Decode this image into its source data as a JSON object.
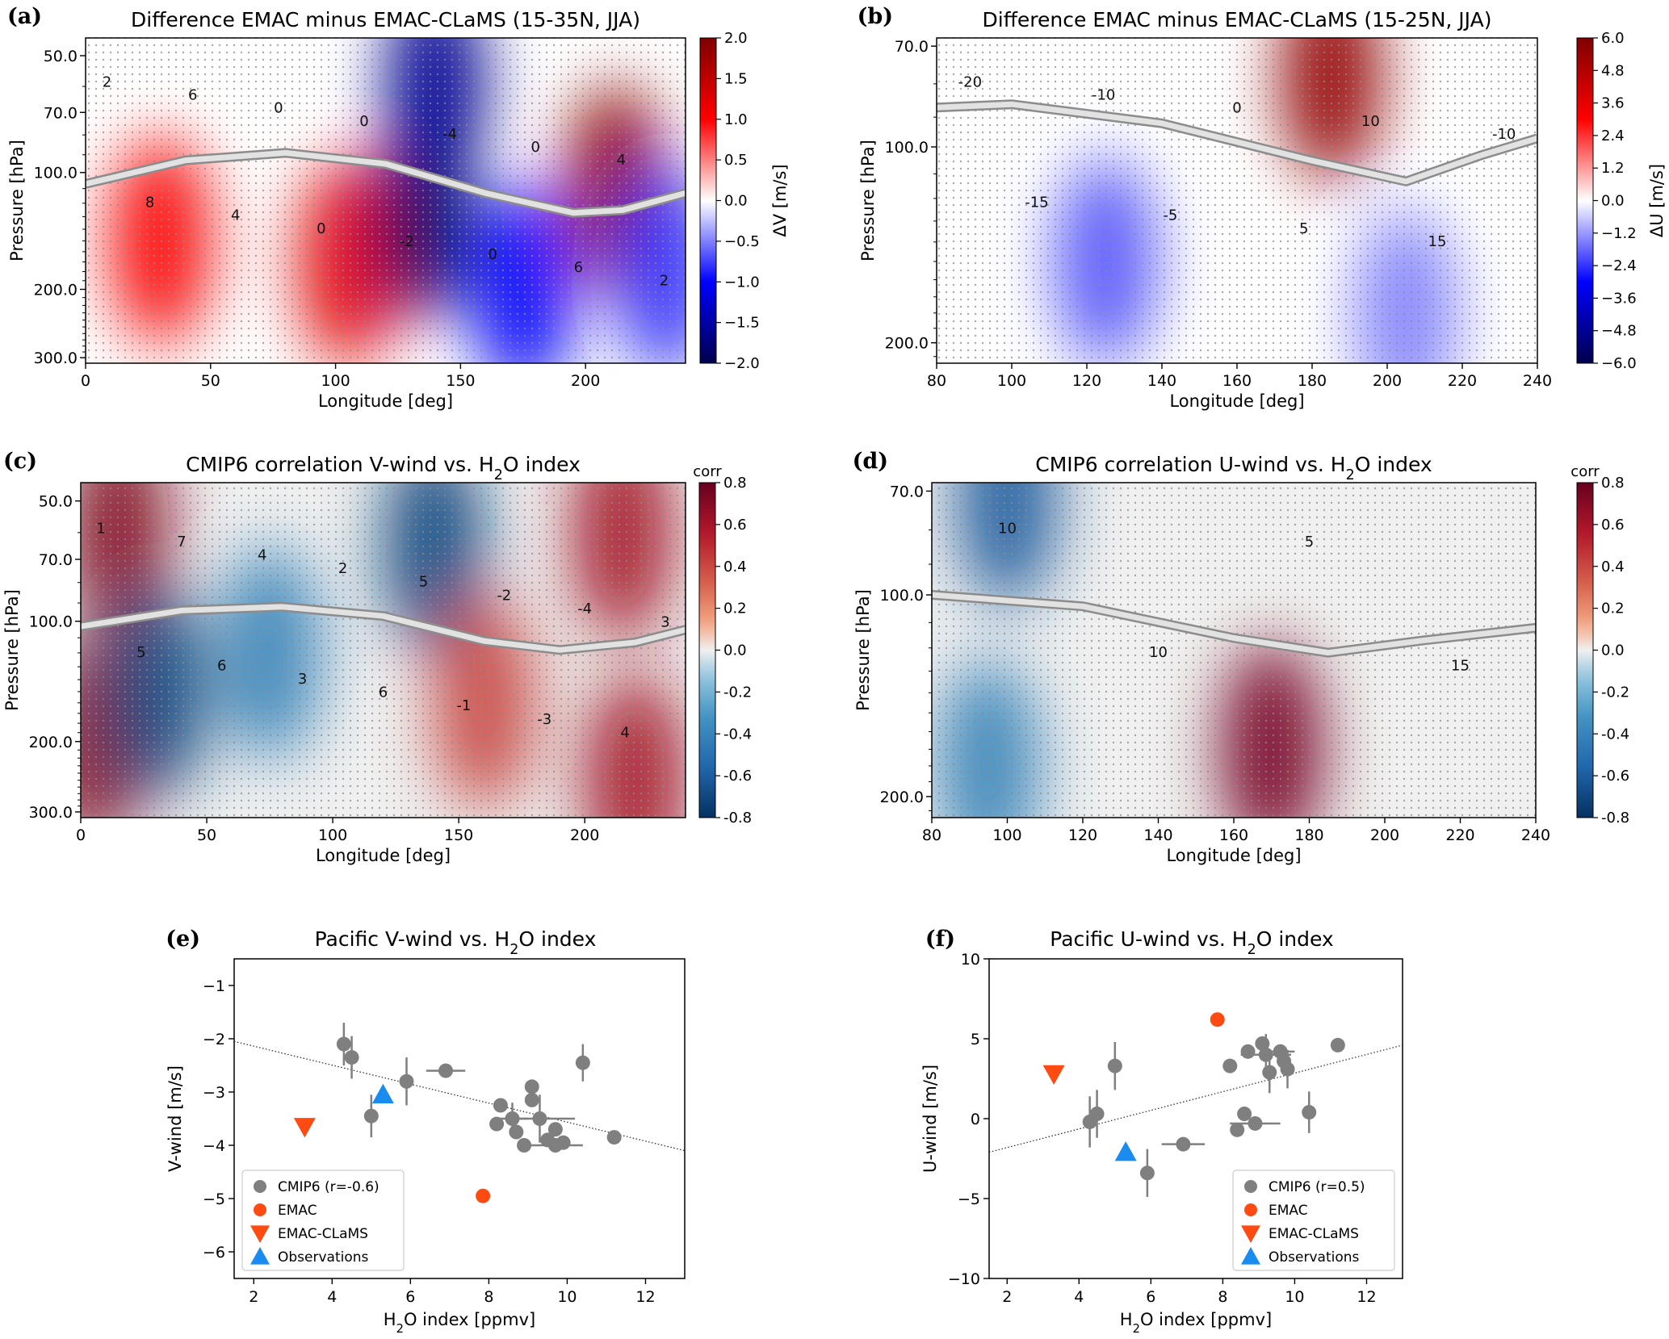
{
  "chart_data": [
    {
      "id": "a",
      "type": "heatmap",
      "panel_label": "(a)",
      "title": "Difference EMAC minus EMAC-CLaMS (15-35N, JJA)",
      "xlabel": "Longitude [deg]",
      "ylabel": "Pressure [hPa]",
      "xlim": [
        0,
        240
      ],
      "ylim": [
        310,
        45
      ],
      "y_scale": "log",
      "x_ticks": [
        "0",
        "50",
        "100",
        "150",
        "200"
      ],
      "x_tick_values": [
        0,
        50,
        100,
        150,
        200
      ],
      "y_ticks": [
        "50.0",
        "70.0",
        "100.0",
        "200.0",
        "300.0"
      ],
      "y_tick_values": [
        50,
        70,
        100,
        200,
        300
      ],
      "colorbar": {
        "label": "ΔV [m/s]",
        "range": [
          -2,
          2
        ],
        "colormap": "seismic",
        "ticks": [
          "2.0",
          "1.5",
          "1.0",
          "0.5",
          "0.0",
          "−0.5",
          "−1.0",
          "−1.5",
          "−2.0"
        ]
      },
      "contour_labels": [
        "2",
        "8",
        "6",
        "4",
        "0",
        "0",
        "0",
        "-2",
        "-4",
        "0",
        "0",
        "6",
        "4",
        "2"
      ],
      "anomaly_centers": [
        {
          "lon": 30,
          "p": 150,
          "value": 1.0
        },
        {
          "lon": 105,
          "p": 170,
          "value": 1.2
        },
        {
          "lon": 135,
          "p": 130,
          "value": -1.9
        },
        {
          "lon": 140,
          "p": 60,
          "value": -1.6
        },
        {
          "lon": 175,
          "p": 200,
          "value": -1.0
        },
        {
          "lon": 212,
          "p": 110,
          "value": 1.9
        },
        {
          "lon": 232,
          "p": 180,
          "value": -0.8
        }
      ],
      "tropopause": [
        [
          0,
          107
        ],
        [
          40,
          93
        ],
        [
          80,
          89
        ],
        [
          120,
          95
        ],
        [
          160,
          113
        ],
        [
          195,
          127
        ],
        [
          215,
          125
        ],
        [
          240,
          113
        ]
      ]
    },
    {
      "id": "b",
      "type": "heatmap",
      "panel_label": "(b)",
      "title": "Difference EMAC minus EMAC-CLaMS (15-25N, JJA)",
      "xlabel": "Longitude [deg]",
      "ylabel": "Pressure [hPa]",
      "xlim": [
        80,
        240
      ],
      "ylim": [
        215,
        68
      ],
      "y_scale": "log",
      "x_ticks": [
        "80",
        "100",
        "120",
        "140",
        "160",
        "180",
        "200",
        "220",
        "240"
      ],
      "x_tick_values": [
        80,
        100,
        120,
        140,
        160,
        180,
        200,
        220,
        240
      ],
      "y_ticks": [
        "70.0",
        "100.0",
        "200.0"
      ],
      "y_tick_values": [
        70,
        100,
        200
      ],
      "colorbar": {
        "label": "ΔU [m/s]",
        "range": [
          -6,
          6
        ],
        "colormap": "seismic",
        "ticks": [
          "6.0",
          "4.8",
          "3.6",
          "2.4",
          "1.2",
          "0.0",
          "−1.2",
          "−2.4",
          "−3.6",
          "−4.8",
          "−6.0"
        ]
      },
      "contour_labels": [
        "-20",
        "-15",
        "-10",
        "-5",
        "0",
        "5",
        "10",
        "15",
        "-10"
      ],
      "anomaly_centers": [
        {
          "lon": 185,
          "p": 78,
          "value": 5.5
        },
        {
          "lon": 125,
          "p": 150,
          "value": -2.0
        },
        {
          "lon": 205,
          "p": 180,
          "value": -1.5
        }
      ],
      "tropopause": [
        [
          80,
          87
        ],
        [
          100,
          86
        ],
        [
          140,
          92
        ],
        [
          180,
          105
        ],
        [
          205,
          113
        ],
        [
          225,
          103
        ],
        [
          240,
          97
        ]
      ]
    },
    {
      "id": "c",
      "type": "heatmap",
      "panel_label": "(c)",
      "title": "CMIP6 correlation V-wind vs. H",
      "title_sub": "2",
      "title_end": "O index",
      "xlabel": "Longitude [deg]",
      "ylabel": "Pressure [hPa]",
      "xlim": [
        0,
        240
      ],
      "ylim": [
        310,
        45
      ],
      "y_scale": "log",
      "x_ticks": [
        "0",
        "50",
        "100",
        "150",
        "200"
      ],
      "x_tick_values": [
        0,
        50,
        100,
        150,
        200
      ],
      "y_ticks": [
        "50.0",
        "70.0",
        "100.0",
        "200.0",
        "300.0"
      ],
      "y_tick_values": [
        50,
        70,
        100,
        200,
        300
      ],
      "colorbar": {
        "label": "corr",
        "range": [
          -0.8,
          0.8
        ],
        "colormap": "RdBu_r",
        "ticks": [
          "0.8",
          "0.6",
          "0.4",
          "0.2",
          "0.0",
          "-0.2",
          "-0.4",
          "-0.6",
          "-0.8"
        ]
      },
      "contour_labels": [
        "1",
        "5",
        "7",
        "6",
        "4",
        "3",
        "2",
        "6",
        "5",
        "-1",
        "-2",
        "-3",
        "-4",
        "4",
        "3"
      ],
      "anomaly_centers": [
        {
          "lon": 15,
          "p": 60,
          "value": 0.7
        },
        {
          "lon": 5,
          "p": 200,
          "value": 0.7
        },
        {
          "lon": 30,
          "p": 150,
          "value": -0.7
        },
        {
          "lon": 75,
          "p": 120,
          "value": -0.4
        },
        {
          "lon": 140,
          "p": 65,
          "value": -0.7
        },
        {
          "lon": 160,
          "p": 160,
          "value": 0.4
        },
        {
          "lon": 215,
          "p": 60,
          "value": 0.6
        },
        {
          "lon": 220,
          "p": 250,
          "value": 0.6
        }
      ],
      "tropopause": [
        [
          0,
          103
        ],
        [
          40,
          94
        ],
        [
          80,
          92
        ],
        [
          120,
          97
        ],
        [
          160,
          112
        ],
        [
          190,
          118
        ],
        [
          220,
          113
        ],
        [
          240,
          105
        ]
      ]
    },
    {
      "id": "d",
      "type": "heatmap",
      "panel_label": "(d)",
      "title": "CMIP6 correlation U-wind vs. H",
      "title_sub": "2",
      "title_end": "O index",
      "xlabel": "Longitude [deg]",
      "ylabel": "Pressure [hPa]",
      "xlim": [
        80,
        240
      ],
      "ylim": [
        215,
        68
      ],
      "y_scale": "log",
      "x_ticks": [
        "80",
        "100",
        "120",
        "140",
        "160",
        "180",
        "200",
        "220",
        "240"
      ],
      "x_tick_values": [
        80,
        100,
        120,
        140,
        160,
        180,
        200,
        220,
        240
      ],
      "y_ticks": [
        "70.0",
        "100.0",
        "200.0"
      ],
      "y_tick_values": [
        70,
        100,
        200
      ],
      "colorbar": {
        "label": "corr",
        "range": [
          -0.8,
          0.8
        ],
        "colormap": "RdBu_r",
        "ticks": [
          "0.8",
          "0.6",
          "0.4",
          "0.2",
          "0.0",
          "-0.2",
          "-0.4",
          "-0.6",
          "-0.8"
        ]
      },
      "contour_labels": [
        "10",
        "10",
        "5",
        "15"
      ],
      "anomaly_centers": [
        {
          "lon": 170,
          "p": 170,
          "value": 0.75
        },
        {
          "lon": 100,
          "p": 72,
          "value": -0.6
        },
        {
          "lon": 95,
          "p": 180,
          "value": -0.4
        }
      ],
      "tropopause": [
        [
          80,
          100
        ],
        [
          120,
          104
        ],
        [
          160,
          116
        ],
        [
          185,
          122
        ],
        [
          210,
          117
        ],
        [
          240,
          112
        ]
      ]
    },
    {
      "id": "e",
      "type": "scatter",
      "panel_label": "(e)",
      "title": "Pacific V-wind vs. H",
      "title_sub": "2",
      "title_end": "O index",
      "xlabel": "H",
      "xlabel_sub": "2",
      "xlabel_end": "O index [ppmv]",
      "ylabel": "V-wind [m/s]",
      "xlim": [
        1.5,
        13
      ],
      "ylim": [
        -6.5,
        -0.5
      ],
      "x_ticks": [
        "2",
        "4",
        "6",
        "8",
        "10",
        "12"
      ],
      "x_tick_values": [
        2,
        4,
        6,
        8,
        10,
        12
      ],
      "y_ticks": [
        "−1",
        "−2",
        "−3",
        "−4",
        "−5",
        "−6"
      ],
      "y_tick_values": [
        -1,
        -2,
        -3,
        -4,
        -5,
        -6
      ],
      "legend_position": "lower-left",
      "regression": {
        "x": [
          1.5,
          13
        ],
        "y": [
          -2.05,
          -4.1
        ]
      },
      "series": [
        {
          "name": "CMIP6 (r=-0.6)",
          "marker": "circle",
          "color": "#7f7f7f",
          "points": [
            {
              "x": 4.3,
              "y": -2.1,
              "xerr": 0.05,
              "yerr": 0.4
            },
            {
              "x": 4.5,
              "y": -2.35,
              "xerr": 0.05,
              "yerr": 0.4
            },
            {
              "x": 5.0,
              "y": -3.45,
              "xerr": 0.05,
              "yerr": 0.4
            },
            {
              "x": 5.9,
              "y": -2.8,
              "xerr": 0.05,
              "yerr": 0.45
            },
            {
              "x": 6.9,
              "y": -2.6,
              "xerr": 0.5,
              "yerr": 0.05
            },
            {
              "x": 8.3,
              "y": -3.25,
              "xerr": 0.05,
              "yerr": 0.05
            },
            {
              "x": 8.2,
              "y": -3.6,
              "xerr": 0.05,
              "yerr": 0.05
            },
            {
              "x": 8.6,
              "y": -3.5,
              "xerr": 0.4,
              "yerr": 0.3
            },
            {
              "x": 8.7,
              "y": -3.75,
              "xerr": 0.05,
              "yerr": 0.05
            },
            {
              "x": 8.9,
              "y": -4.0,
              "xerr": 0.05,
              "yerr": 0.05
            },
            {
              "x": 9.1,
              "y": -2.9,
              "xerr": 0.05,
              "yerr": 0.05
            },
            {
              "x": 9.1,
              "y": -3.15,
              "xerr": 0.05,
              "yerr": 0.05
            },
            {
              "x": 9.3,
              "y": -3.5,
              "xerr": 0.9,
              "yerr": 0.45
            },
            {
              "x": 9.5,
              "y": -3.9,
              "xerr": 0.05,
              "yerr": 0.05
            },
            {
              "x": 9.7,
              "y": -3.7,
              "xerr": 0.05,
              "yerr": 0.05
            },
            {
              "x": 9.7,
              "y": -4.0,
              "xerr": 0.7,
              "yerr": 0.05
            },
            {
              "x": 9.9,
              "y": -3.95,
              "xerr": 0.05,
              "yerr": 0.05
            },
            {
              "x": 10.4,
              "y": -2.45,
              "xerr": 0.05,
              "yerr": 0.35
            },
            {
              "x": 11.2,
              "y": -3.85,
              "xerr": 0.05,
              "yerr": 0.05
            }
          ]
        },
        {
          "name": "EMAC",
          "marker": "circle",
          "color": "#ff4a12",
          "points": [
            {
              "x": 7.85,
              "y": -4.95
            }
          ]
        },
        {
          "name": "EMAC-CLaMS",
          "marker": "triangle-down",
          "color": "#ff4a12",
          "points": [
            {
              "x": 3.3,
              "y": -3.65
            }
          ]
        },
        {
          "name": "Observations",
          "marker": "triangle-up",
          "color": "#1a8cf0",
          "points": [
            {
              "x": 5.3,
              "y": -3.05
            }
          ]
        }
      ]
    },
    {
      "id": "f",
      "type": "scatter",
      "panel_label": "(f)",
      "title": "Pacific U-wind vs. H",
      "title_sub": "2",
      "title_end": "O index",
      "xlabel": "H",
      "xlabel_sub": "2",
      "xlabel_end": "O index [ppmv]",
      "ylabel": "U-wind [m/s]",
      "xlim": [
        1.5,
        13
      ],
      "ylim": [
        -10,
        10
      ],
      "x_ticks": [
        "2",
        "4",
        "6",
        "8",
        "10",
        "12"
      ],
      "x_tick_values": [
        2,
        4,
        6,
        8,
        10,
        12
      ],
      "y_ticks": [
        "10",
        "5",
        "0",
        "−5",
        "−10"
      ],
      "y_tick_values": [
        10,
        5,
        0,
        -5,
        -10
      ],
      "legend_position": "lower-right",
      "regression": {
        "x": [
          1.5,
          13
        ],
        "y": [
          -2.1,
          4.6
        ]
      },
      "series": [
        {
          "name": "CMIP6 (r=0.5)",
          "marker": "circle",
          "color": "#7f7f7f",
          "points": [
            {
              "x": 4.3,
              "y": -0.2,
              "xerr": 0.05,
              "yerr": 1.6
            },
            {
              "x": 4.5,
              "y": 0.3,
              "xerr": 0.05,
              "yerr": 1.5
            },
            {
              "x": 5.0,
              "y": 3.3,
              "xerr": 0.05,
              "yerr": 1.5
            },
            {
              "x": 5.9,
              "y": -3.4,
              "xerr": 0.05,
              "yerr": 1.5
            },
            {
              "x": 6.9,
              "y": -1.6,
              "xerr": 0.6,
              "yerr": 0.05
            },
            {
              "x": 8.2,
              "y": 3.3,
              "xerr": 0.05,
              "yerr": 0.05
            },
            {
              "x": 8.4,
              "y": -0.7,
              "xerr": 0.05,
              "yerr": 0.05
            },
            {
              "x": 8.6,
              "y": 0.3,
              "xerr": 0.05,
              "yerr": 0.05
            },
            {
              "x": 8.7,
              "y": 4.2,
              "xerr": 0.05,
              "yerr": 0.05
            },
            {
              "x": 8.9,
              "y": -0.3,
              "xerr": 0.7,
              "yerr": 0.05
            },
            {
              "x": 9.1,
              "y": 4.7,
              "xerr": 0.05,
              "yerr": 0.05
            },
            {
              "x": 9.2,
              "y": 4.0,
              "xerr": 0.7,
              "yerr": 1.3
            },
            {
              "x": 9.3,
              "y": 2.9,
              "xerr": 0.05,
              "yerr": 1.3
            },
            {
              "x": 9.6,
              "y": 4.2,
              "xerr": 0.4,
              "yerr": 0.05
            },
            {
              "x": 9.7,
              "y": 3.6,
              "xerr": 0.05,
              "yerr": 0.05
            },
            {
              "x": 9.8,
              "y": 3.1,
              "xerr": 0.05,
              "yerr": 1.2
            },
            {
              "x": 10.4,
              "y": 0.4,
              "xerr": 0.05,
              "yerr": 1.3
            },
            {
              "x": 11.2,
              "y": 4.6,
              "xerr": 0.05,
              "yerr": 0.05
            }
          ]
        },
        {
          "name": "EMAC",
          "marker": "circle",
          "color": "#ff4a12",
          "points": [
            {
              "x": 7.85,
              "y": 6.2
            }
          ]
        },
        {
          "name": "EMAC-CLaMS",
          "marker": "triangle-down",
          "color": "#ff4a12",
          "points": [
            {
              "x": 3.3,
              "y": 2.8
            }
          ]
        },
        {
          "name": "Observations",
          "marker": "triangle-up",
          "color": "#1a8cf0",
          "points": [
            {
              "x": 5.3,
              "y": -2.1
            }
          ]
        }
      ]
    }
  ]
}
